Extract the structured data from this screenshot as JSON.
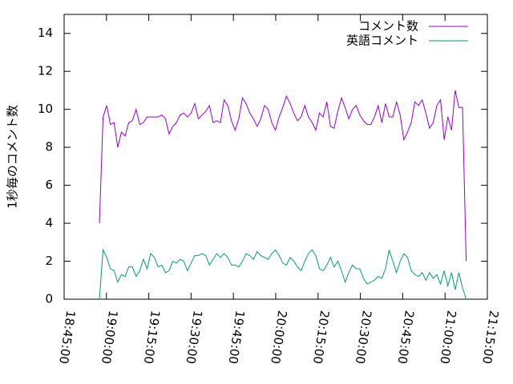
{
  "chart_data": {
    "type": "line",
    "ylabel": "1秒毎のコメント数",
    "legend": "top-right",
    "xlim": [
      "18:45:00",
      "21:15:00"
    ],
    "xticks": [
      "18:45:00",
      "19:00:00",
      "19:15:00",
      "19:30:00",
      "19:45:00",
      "20:00:00",
      "20:15:00",
      "20:30:00",
      "20:45:00",
      "21:00:00",
      "21:15:00"
    ],
    "ylim": [
      0,
      15
    ],
    "yticks": [
      0,
      2,
      4,
      6,
      8,
      10,
      12,
      14
    ],
    "x": [
      "18:57:30",
      "18:58:48",
      "19:00:06",
      "19:01:24",
      "19:02:42",
      "19:04:00",
      "19:05:18",
      "19:06:36",
      "19:07:54",
      "19:09:12",
      "19:10:30",
      "19:11:48",
      "19:13:06",
      "19:14:24",
      "19:15:42",
      "19:17:00",
      "19:18:18",
      "19:19:36",
      "19:20:54",
      "19:22:12",
      "19:23:30",
      "19:24:48",
      "19:26:06",
      "19:27:24",
      "19:28:42",
      "19:30:00",
      "19:31:18",
      "19:32:36",
      "19:33:54",
      "19:35:12",
      "19:36:30",
      "19:37:48",
      "19:39:06",
      "19:40:24",
      "19:41:42",
      "19:43:00",
      "19:44:18",
      "19:45:36",
      "19:46:54",
      "19:48:12",
      "19:49:30",
      "19:50:48",
      "19:52:06",
      "19:53:24",
      "19:54:42",
      "19:56:00",
      "19:57:18",
      "19:58:36",
      "19:59:54",
      "20:01:12",
      "20:02:30",
      "20:03:48",
      "20:05:06",
      "20:06:24",
      "20:07:42",
      "20:09:00",
      "20:10:18",
      "20:11:36",
      "20:12:54",
      "20:14:12",
      "20:15:30",
      "20:16:48",
      "20:18:06",
      "20:19:24",
      "20:20:42",
      "20:22:00",
      "20:23:18",
      "20:24:36",
      "20:25:54",
      "20:27:12",
      "20:28:30",
      "20:29:48",
      "20:31:06",
      "20:32:24",
      "20:33:42",
      "20:35:00",
      "20:36:18",
      "20:37:36",
      "20:38:54",
      "20:40:12",
      "20:41:30",
      "20:42:48",
      "20:44:06",
      "20:45:24",
      "20:46:42",
      "20:48:00",
      "20:49:18",
      "20:50:36",
      "20:51:54",
      "20:53:12",
      "20:54:30",
      "20:55:48",
      "20:57:06",
      "20:58:24",
      "20:59:42",
      "21:01:00",
      "21:02:18",
      "21:03:36",
      "21:04:54",
      "21:06:12",
      "21:07:30"
    ],
    "series": [
      {
        "name": "コメント数",
        "color": "#9400d3",
        "values": [
          4.0,
          9.6,
          10.2,
          9.2,
          9.3,
          8.0,
          8.8,
          8.6,
          9.3,
          9.4,
          10.0,
          9.2,
          9.3,
          9.6,
          9.6,
          9.6,
          9.6,
          9.7,
          9.5,
          8.7,
          9.1,
          9.3,
          9.7,
          9.8,
          9.6,
          9.8,
          10.3,
          9.5,
          9.7,
          9.9,
          10.2,
          9.3,
          9.4,
          9.3,
          10.5,
          10.2,
          9.4,
          8.9,
          9.5,
          10.6,
          10.3,
          9.8,
          9.5,
          9.1,
          9.5,
          10.2,
          10.0,
          9.3,
          8.9,
          9.6,
          10.1,
          10.7,
          10.3,
          9.8,
          9.4,
          9.6,
          10.2,
          9.6,
          9.3,
          8.9,
          9.8,
          9.6,
          10.4,
          9.1,
          9.0,
          9.9,
          10.6,
          10.1,
          9.5,
          10.0,
          10.2,
          9.7,
          9.4,
          9.2,
          9.2,
          9.6,
          10.2,
          9.3,
          10.3,
          9.6,
          9.6,
          10.4,
          9.7,
          8.4,
          8.8,
          9.3,
          10.4,
          10.2,
          10.5,
          9.8,
          9.0,
          9.3,
          10.2,
          10.5,
          8.4,
          9.6,
          8.9,
          11.0,
          10.1,
          10.1,
          2.0
        ]
      },
      {
        "name": "英語コメント",
        "color": "#009e73",
        "values": [
          0,
          2.6,
          2.2,
          1.6,
          1.5,
          0.9,
          1.3,
          1.2,
          1.7,
          1.7,
          1.2,
          1.5,
          2.1,
          1.6,
          2.4,
          2.2,
          1.7,
          1.8,
          1.4,
          1.5,
          2.0,
          1.9,
          2.1,
          2.0,
          1.5,
          1.9,
          2.3,
          2.3,
          2.4,
          2.3,
          1.8,
          2.1,
          2.4,
          2.2,
          2.4,
          2.2,
          1.8,
          1.8,
          1.7,
          2.0,
          2.4,
          2.3,
          2.1,
          2.5,
          2.3,
          2.2,
          2.1,
          2.4,
          2.6,
          2.3,
          1.9,
          1.8,
          2.2,
          2.0,
          1.7,
          1.5,
          2.0,
          2.4,
          2.6,
          2.3,
          1.6,
          1.5,
          1.8,
          2.2,
          1.7,
          2.0,
          1.5,
          0.9,
          1.4,
          1.8,
          1.6,
          1.6,
          1.1,
          0.8,
          0.9,
          1.0,
          1.2,
          1.1,
          1.6,
          2.6,
          2.0,
          1.4,
          2.0,
          2.4,
          2.2,
          1.5,
          1.3,
          1.2,
          1.4,
          1.0,
          1.4,
          1.1,
          1.3,
          0.8,
          1.5,
          0.7,
          1.4,
          0.5,
          1.4,
          0.6,
          0.0
        ]
      }
    ]
  }
}
